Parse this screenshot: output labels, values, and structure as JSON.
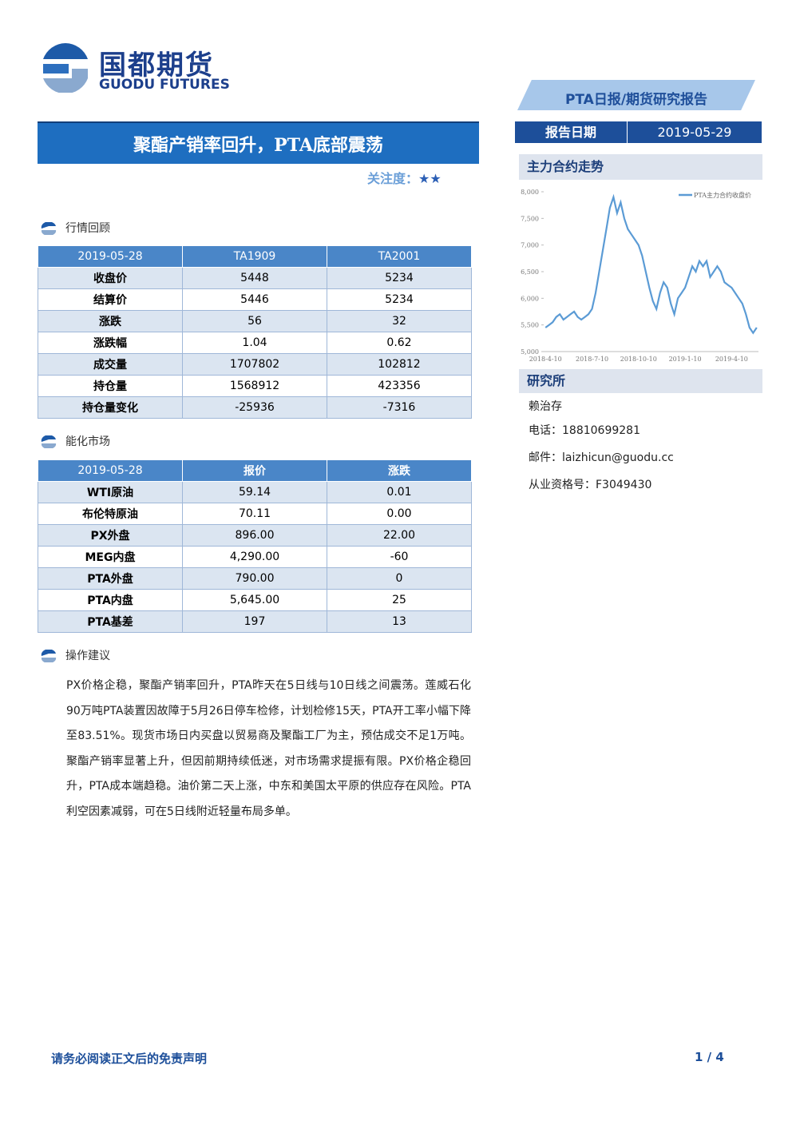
{
  "header": {
    "logo_cn": "国都期货",
    "logo_en": "GUODU FUTURES",
    "report_type": "PTA日报/期货研究报告"
  },
  "title": "聚酯产销率回升，PTA底部震荡",
  "attention": {
    "label": "关注度：",
    "stars": "★★"
  },
  "report_date": {
    "label": "报告日期",
    "value": "2019-05-29"
  },
  "sections": [
    "行情回顾",
    "能化市场",
    "操作建议"
  ],
  "tables": [
    {
      "header": [
        "2019-05-28",
        "TA1909",
        "TA2001"
      ],
      "rows": [
        [
          "收盘价",
          "5448",
          "5234"
        ],
        [
          "结算价",
          "5446",
          "5234"
        ],
        [
          "涨跌",
          "56",
          "32"
        ],
        [
          "涨跌幅",
          "1.04",
          "0.62"
        ],
        [
          "成交量",
          "1707802",
          "102812"
        ],
        [
          "持仓量",
          "1568912",
          "423356"
        ],
        [
          "持仓量变化",
          "-25936",
          "-7316"
        ]
      ]
    },
    {
      "header": [
        "2019-05-28",
        "报价",
        "涨跌"
      ],
      "rows": [
        [
          "WTI原油",
          "59.14",
          "0.01"
        ],
        [
          "布伦特原油",
          "70.11",
          "0.00"
        ],
        [
          "PX外盘",
          "896.00",
          "22.00"
        ],
        [
          "MEG内盘",
          "4,290.00",
          "-60"
        ],
        [
          "PTA外盘",
          "790.00",
          "0"
        ],
        [
          "PTA内盘",
          "5,645.00",
          "25"
        ],
        [
          "PTA基差",
          "197",
          "13"
        ]
      ]
    }
  ],
  "advice": "PX价格企稳，聚酯产销率回升，PTA昨天在5日线与10日线之间震荡。莲威石化90万吨PTA装置因故障于5月26日停车检修，计划检修15天，PTA开工率小幅下降至83.51%。现货市场日内买盘以贸易商及聚酯工厂为主，预估成交不足1万吨。聚酯产销率显著上升，但因前期持续低迷，对市场需求提振有限。PX价格企稳回升，PTA成本端趋稳。油价第二天上涨，中东和美国太平原的供应存在风险。PTA利空因素减弱，可在5日线附近轻量布局多单。",
  "chart_title": "主力合约走势",
  "chart_data": {
    "type": "line",
    "categories": [
      "2018-4-10",
      null,
      null,
      null,
      null,
      null,
      null,
      null,
      null,
      null,
      null,
      null,
      null,
      "2018-7-10",
      null,
      null,
      null,
      null,
      null,
      null,
      null,
      null,
      null,
      null,
      null,
      null,
      "2018-10-10",
      null,
      null,
      null,
      null,
      null,
      null,
      null,
      null,
      null,
      null,
      null,
      null,
      "2019-1-10",
      null,
      null,
      null,
      null,
      null,
      null,
      null,
      null,
      null,
      null,
      null,
      null,
      "2019-4-10",
      null,
      null,
      null,
      null,
      null,
      null,
      null
    ],
    "series": [
      {
        "name": "PTA主力合约收盘价",
        "color": "#5b9bd5",
        "values": [
          5450,
          5500,
          5550,
          5650,
          5700,
          5600,
          5650,
          5700,
          5750,
          5650,
          5600,
          5650,
          5700,
          5800,
          6100,
          6500,
          6900,
          7300,
          7700,
          7900,
          7600,
          7800,
          7500,
          7300,
          7200,
          7100,
          7000,
          6800,
          6500,
          6200,
          5950,
          5800,
          6100,
          6300,
          6200,
          5900,
          5700,
          6000,
          6100,
          6200,
          6400,
          6600,
          6500,
          6700,
          6600,
          6700,
          6400,
          6500,
          6600,
          6500,
          6300,
          6250,
          6200,
          6100,
          6000,
          5900,
          5700,
          5450,
          5350,
          5450
        ]
      }
    ],
    "ylim": [
      5000,
      8000
    ],
    "yticks": [
      {
        "value": 5000,
        "label": "5,000"
      },
      {
        "value": 5500,
        "label": "5,500"
      },
      {
        "value": 6000,
        "label": "6,000"
      },
      {
        "value": 6500,
        "label": "6,500"
      },
      {
        "value": 7000,
        "label": "7,000"
      },
      {
        "value": 7500,
        "label": "7,500"
      },
      {
        "value": 8000,
        "label": "8,000"
      }
    ],
    "legend": "top-right"
  },
  "research": {
    "title": "研究所",
    "name": "赖治存",
    "phone": "电话：18810699281",
    "email": "邮件：laizhicun@guodu.cc",
    "license": "从业资格号：F3049430"
  },
  "footer": {
    "disclaimer": "请务必阅读正文后的免责声明",
    "page": "1 / 4"
  }
}
